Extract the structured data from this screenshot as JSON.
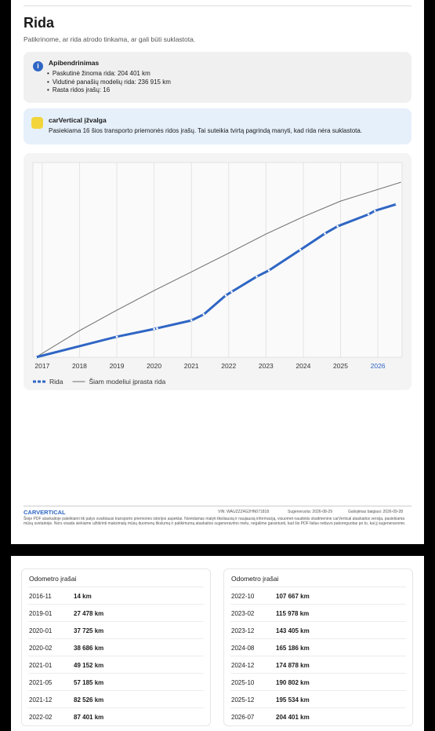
{
  "header": {
    "title": "Rida",
    "subtitle": "Patikrinome, ar rida atrodo tinkama, ar gali būti suklastota."
  },
  "summary": {
    "title": "Apibendrinimas",
    "items": [
      "Paskutinė žinoma rida: 204 401 km",
      "Vidutinė panašių modelių rida: 236 915 km",
      "Rasta ridos įrašų: 16"
    ]
  },
  "insight": {
    "title": "carVertical įžvalga",
    "text": "Pasiekiama 16 šios transporto priemonės ridos įrašų. Tai suteikia tvirtą pagrindą manyti, kad rida nėra suklastota."
  },
  "chart_data": {
    "type": "line",
    "xlim": [
      2016.75,
      2026.65
    ],
    "ylim": [
      0,
      260000
    ],
    "xticks": [
      2017,
      2018,
      2019,
      2020,
      2021,
      2022,
      2023,
      2024,
      2025,
      2026
    ],
    "highlight_xtick": 2026,
    "grid": true,
    "series": [
      {
        "name": "Rida",
        "color": "#2f66c4",
        "x": [
          2016.83,
          2019.0,
          2020.0,
          2020.08,
          2021.0,
          2021.33,
          2021.92,
          2022.08,
          2022.75,
          2023.08,
          2023.92,
          2024.58,
          2024.92,
          2025.75,
          2025.92,
          2026.5
        ],
        "values": [
          14,
          27478,
          37725,
          38686,
          49152,
          57185,
          82526,
          87401,
          107667,
          115978,
          143405,
          165186,
          174878,
          190802,
          195534,
          204401
        ]
      },
      {
        "name": "Šiam modeliui įprasta rida",
        "color": "#6b6b6b",
        "x": [
          2016.83,
          2018,
          2019,
          2020,
          2021,
          2022,
          2023,
          2024,
          2025,
          2026.62
        ],
        "values": [
          0,
          35600,
          62900,
          89000,
          114000,
          139000,
          164500,
          187600,
          208500,
          233700
        ]
      }
    ]
  },
  "footer": {
    "logo": "CARVERTICAL",
    "vin": "VIN: WAUZZZ4G2HN071818",
    "generated": "Sugeneruota: 2026-08-29",
    "expires": "Galiojimas baigiasi: 2026-09-28",
    "disclaimer": "Šioje PDF ataskaitoje pateikiami tik patys svarbiausi transporto priemonės istorijos aspektai. Norėdamas matyti tiksliausią ir naujausią informaciją, visuomet naudokis skaitmenine carVertical ataskaitos versija, pasiekiama mūsų svetainėje. Nors visada siekiame užtikrinti maksimalų mūsų duomenų tikslumą ir patikimumą ataskaitos sugeneravimo metu, negalime garantuoti, kad šis PDF failas nebuvo pakoreguotas po to, kai jį sugeneravome."
  },
  "tables": [
    {
      "title": "Odometro įrašai",
      "rows": [
        [
          "2016-11",
          "14 km"
        ],
        [
          "2019-01",
          "27 478 km"
        ],
        [
          "2020-01",
          "37 725 km"
        ],
        [
          "2020-02",
          "38 686 km"
        ],
        [
          "2021-01",
          "49 152 km"
        ],
        [
          "2021-05",
          "57 185 km"
        ],
        [
          "2021-12",
          "82 526 km"
        ],
        [
          "2022-02",
          "87 401 km"
        ]
      ]
    },
    {
      "title": "Odometro įrašai",
      "rows": [
        [
          "2022-10",
          "107 667 km"
        ],
        [
          "2023-02",
          "115 978 km"
        ],
        [
          "2023-12",
          "143 405 km"
        ],
        [
          "2024-08",
          "165 186 km"
        ],
        [
          "2024-12",
          "174 878 km"
        ],
        [
          "2025-10",
          "190 802 km"
        ],
        [
          "2025-12",
          "195 534 km"
        ],
        [
          "2026-07",
          "204 401 km"
        ]
      ]
    }
  ]
}
